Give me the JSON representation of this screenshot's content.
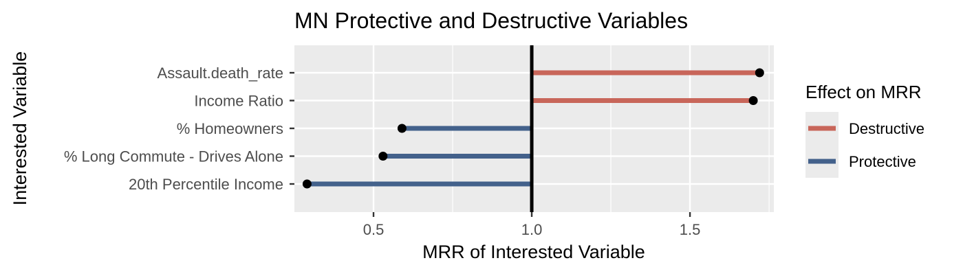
{
  "chart_data": {
    "type": "lollipop",
    "title": "MN Protective and Destructive Variables",
    "xlabel": "MRR of Interested Variable",
    "ylabel": "Interested Variable",
    "xlim": [
      0.25,
      1.765
    ],
    "x_ticks": [
      0.5,
      1.0,
      1.5
    ],
    "x_tick_labels": [
      "0.5",
      "1.0",
      "1.5"
    ],
    "reference_line": 1.0,
    "grid": true,
    "legend": {
      "title": "Effect on MRR",
      "position": "right",
      "entries": [
        {
          "label": "Destructive",
          "color": "#c8665a"
        },
        {
          "label": "Protective",
          "color": "#43618b"
        }
      ]
    },
    "categories": [
      "Assault.death_rate",
      "Income Ratio",
      "% Homeowners",
      "% Long Commute - Drives Alone",
      "20th Percentile Income"
    ],
    "values": [
      1.72,
      1.7,
      0.59,
      0.53,
      0.29
    ],
    "effects": [
      "Destructive",
      "Destructive",
      "Protective",
      "Protective",
      "Protective"
    ],
    "colors": {
      "panel": "#ebebeb",
      "grid": "#ffffff",
      "point": "#000000",
      "ref_line": "#000000",
      "text": "#000000",
      "tick_text": "#4d4d4d"
    }
  }
}
